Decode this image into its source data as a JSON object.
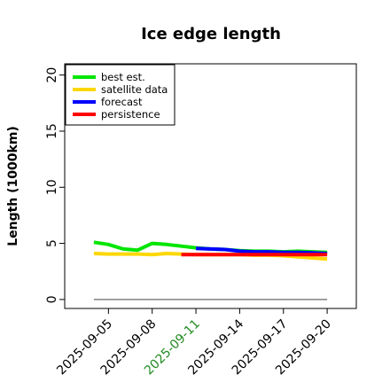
{
  "chart_data": {
    "type": "line",
    "title": "Ice edge length",
    "xlabel": "",
    "ylabel": "Length (1000km)",
    "ylim": [
      -0.8,
      21
    ],
    "xlim": [
      "2025-09-02",
      "2025-09-22"
    ],
    "yticks": [
      0,
      5,
      10,
      15,
      20
    ],
    "xticks": [
      "2025-09-05",
      "2025-09-08",
      "2025-09-11",
      "2025-09-14",
      "2025-09-17",
      "2025-09-20"
    ],
    "highlight_tick": "2025-09-11",
    "highlight_color": "#228b22",
    "grid": false,
    "legend": "top-left",
    "baseline": {
      "y": 0,
      "x_start": "2025-09-04",
      "x_end": "2025-09-20",
      "color": "#808080"
    },
    "series": [
      {
        "name": "best est.",
        "color": "#00e600",
        "x": [
          "2025-09-04",
          "2025-09-05",
          "2025-09-06",
          "2025-09-07",
          "2025-09-08",
          "2025-09-09",
          "2025-09-10",
          "2025-09-11",
          "2025-09-12",
          "2025-09-13",
          "2025-09-14",
          "2025-09-15",
          "2025-09-16",
          "2025-09-17",
          "2025-09-18",
          "2025-09-19",
          "2025-09-20"
        ],
        "y": [
          5.1,
          4.9,
          4.5,
          4.4,
          5.0,
          4.9,
          4.75,
          4.6,
          4.5,
          4.45,
          4.35,
          4.3,
          4.3,
          4.25,
          4.3,
          4.25,
          4.2
        ]
      },
      {
        "name": "satellite data",
        "color": "#ffd700",
        "x": [
          "2025-09-04",
          "2025-09-05",
          "2025-09-06",
          "2025-09-07",
          "2025-09-08",
          "2025-09-09",
          "2025-09-10",
          "2025-09-11",
          "2025-09-12",
          "2025-09-13",
          "2025-09-14",
          "2025-09-15",
          "2025-09-16",
          "2025-09-17",
          "2025-09-18",
          "2025-09-19",
          "2025-09-20"
        ],
        "y": [
          4.1,
          4.05,
          4.05,
          4.05,
          4.0,
          4.1,
          4.05,
          4.0,
          4.0,
          4.0,
          4.0,
          3.95,
          3.95,
          3.9,
          3.8,
          3.7,
          3.6
        ]
      },
      {
        "name": "forecast",
        "color": "#0000ff",
        "x": [
          "2025-09-11",
          "2025-09-12",
          "2025-09-13",
          "2025-09-14",
          "2025-09-15",
          "2025-09-16",
          "2025-09-17",
          "2025-09-18",
          "2025-09-19",
          "2025-09-20"
        ],
        "y": [
          4.55,
          4.5,
          4.45,
          4.3,
          4.25,
          4.25,
          4.2,
          4.2,
          4.15,
          4.1
        ]
      },
      {
        "name": "persistence",
        "color": "#ff0000",
        "x": [
          "2025-09-10",
          "2025-09-20"
        ],
        "y": [
          4.0,
          4.0
        ]
      }
    ]
  }
}
